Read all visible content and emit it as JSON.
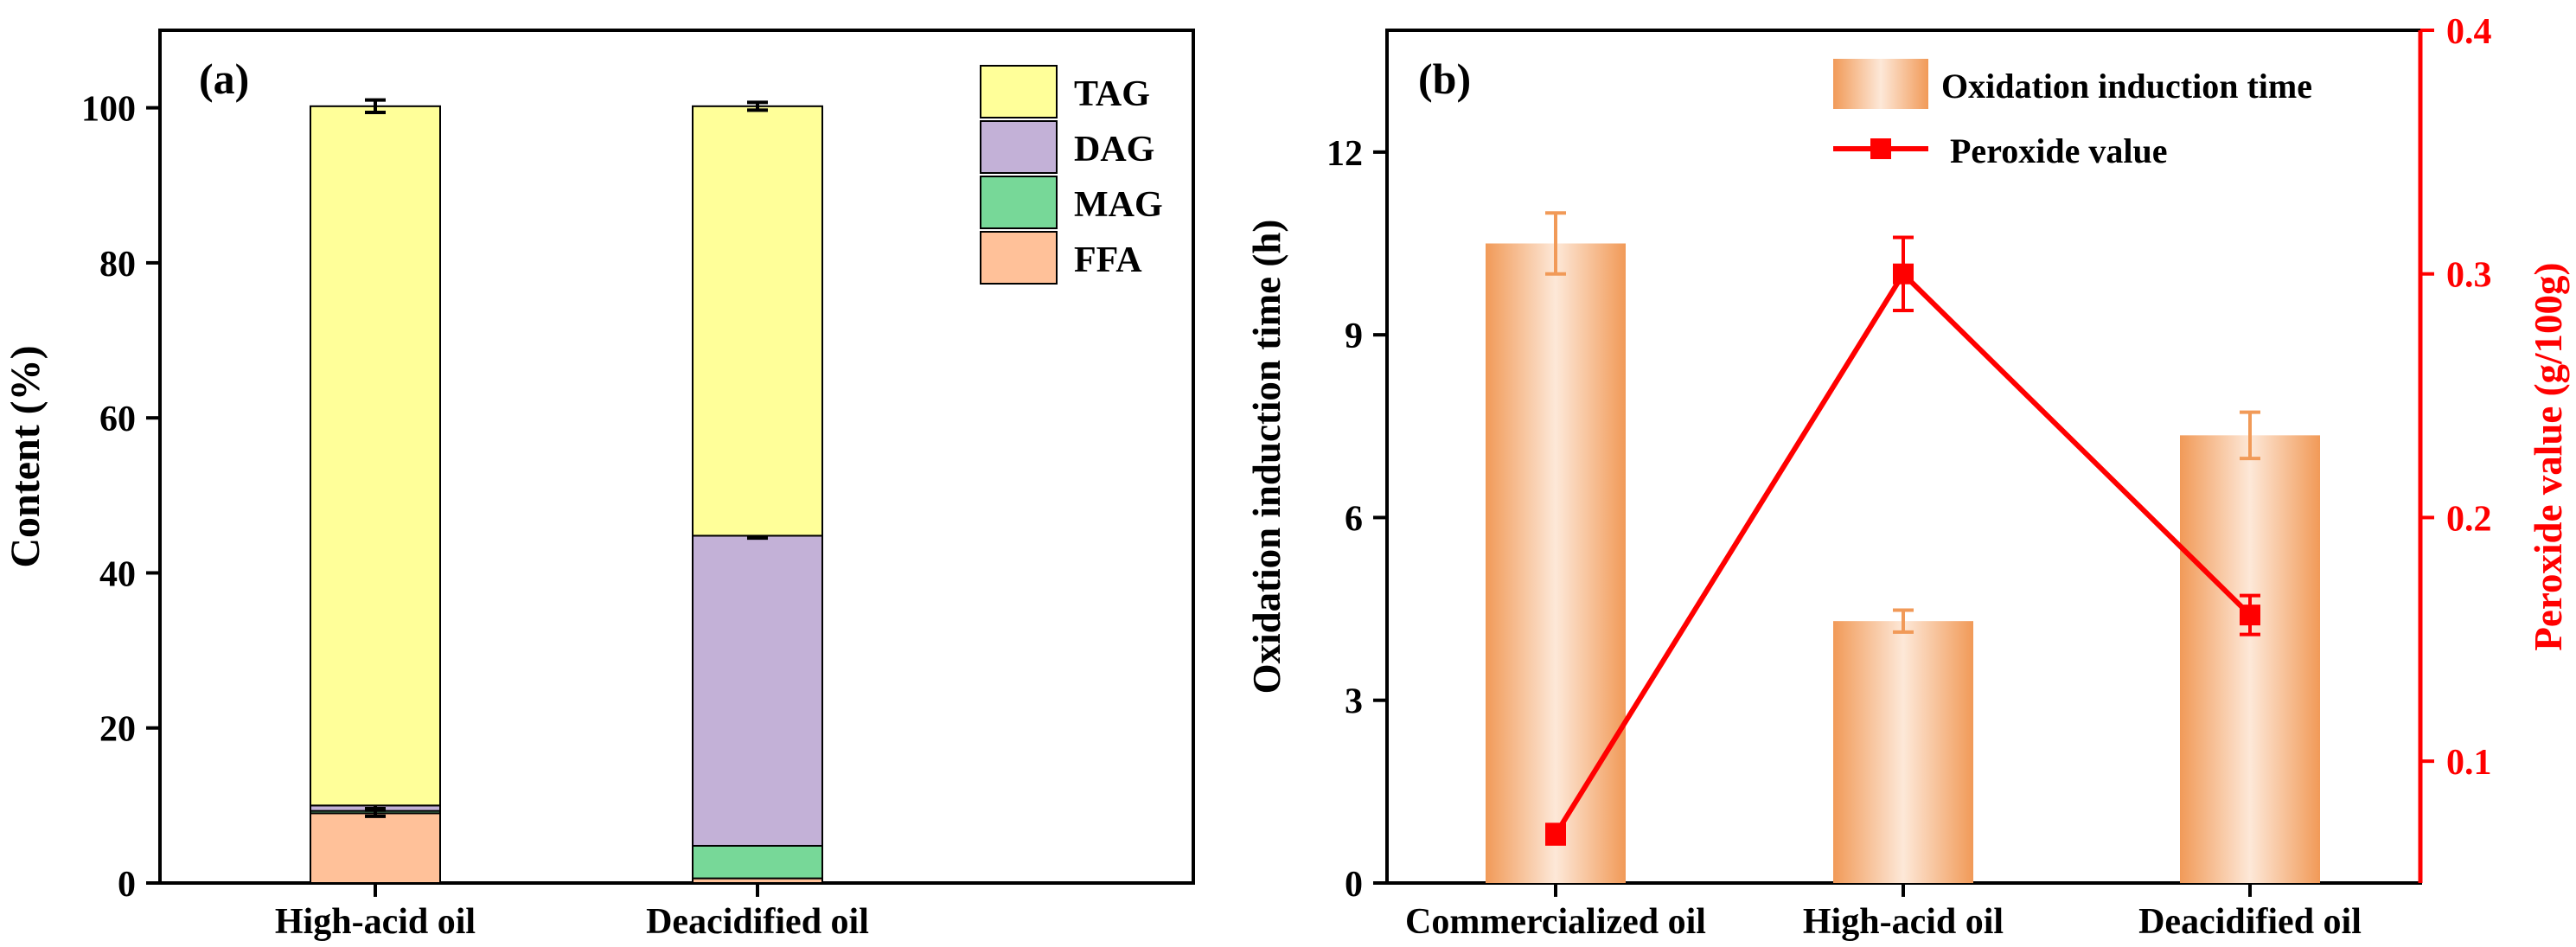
{
  "colors": {
    "tag": "#ffff99",
    "dag": "#c3b1d7",
    "mag": "#77d898",
    "ffa": "#ffc199",
    "bar_edge": "#f19a58",
    "bar_mid": "#fde8d8",
    "peroxide": "#ff0000",
    "axis": "#000000"
  },
  "chart_data": [
    {
      "type": "stacked-bar",
      "panel_label": "(a)",
      "categories": [
        "High-acid oil",
        "Deacidified oil"
      ],
      "series": [
        {
          "name": "FFA",
          "color_key": "ffa",
          "values": [
            9.0,
            0.6
          ],
          "errors": [
            0,
            0
          ]
        },
        {
          "name": "MAG",
          "color_key": "mag",
          "values": [
            0.3,
            4.2
          ],
          "errors": [
            0,
            0
          ]
        },
        {
          "name": "DAG",
          "color_key": "dag",
          "values": [
            0.7,
            40.0
          ],
          "errors": [
            0.4,
            0.3
          ]
        },
        {
          "name": "TAG",
          "color_key": "tag",
          "values": [
            90.2,
            55.4
          ],
          "errors": [
            0.8,
            0.5
          ]
        }
      ],
      "ffa_errors": [
        0.4,
        0
      ],
      "ylabel": "Content (%)",
      "ylim": [
        0,
        110
      ],
      "yticks": [
        0,
        20,
        40,
        60,
        80,
        100
      ],
      "legend_order": [
        "TAG",
        "DAG",
        "MAG",
        "FFA"
      ],
      "legend_position": "top-right"
    },
    {
      "type": "bar+line",
      "panel_label": "(b)",
      "categories": [
        "Commercialized oil",
        "High-acid oil",
        "Deacidified oil"
      ],
      "series": [
        {
          "name": "Oxidation induction time",
          "axis": "left",
          "kind": "bar",
          "values": [
            10.5,
            4.3,
            7.35
          ],
          "errors": [
            0.5,
            0.18,
            0.38
          ]
        },
        {
          "name": "Peroxide value",
          "axis": "right",
          "kind": "line",
          "values": [
            0.07,
            0.3,
            0.16
          ],
          "errors": [
            0.004,
            0.015,
            0.008
          ]
        }
      ],
      "ylabel_left": "Oxidation induction time (h)",
      "ylabel_right": "Peroxide value (g/100g)",
      "ylim_left": [
        0,
        14
      ],
      "yticks_left": [
        0,
        3,
        6,
        9,
        12
      ],
      "ylim_right": [
        0.05,
        0.4
      ],
      "yticks_right": [
        0.1,
        0.2,
        0.3,
        0.4
      ],
      "legend_position": "top-right"
    }
  ]
}
